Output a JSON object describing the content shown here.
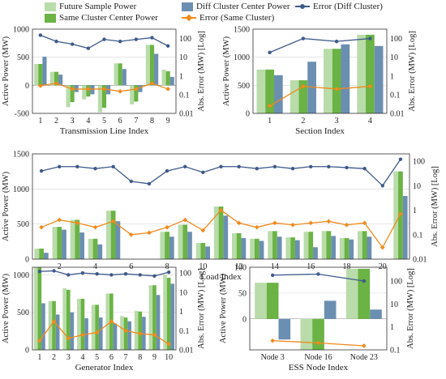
{
  "legend": {
    "future": "Future Sample Power",
    "same": "Same Cluster Center Power",
    "diff": "Diff Cluster Center Power",
    "err_diff": "Error (Diff Cluster)",
    "err_same": "Error (Same Cluster)"
  },
  "colors": {
    "future": "#b9dcaa",
    "same": "#6ab344",
    "diff": "#6b8fb0",
    "err_diff": "#3e5a8a",
    "err_same": "#f08a1c"
  },
  "chart_data": [
    {
      "type": "bar",
      "xlabel": "Transmission Line Index",
      "ylabel": "Active Power (MW)",
      "ylabel_right": "Abs. Error (MW) [Log]",
      "ylim": [
        -500,
        1000
      ],
      "yticks": [
        -500,
        0,
        500,
        1000
      ],
      "y2ticks": [
        "0.01",
        "0.1",
        "1",
        "10",
        "100"
      ],
      "categories": [
        "1",
        "2",
        "3",
        "4",
        "5",
        "6",
        "7",
        "8",
        "9"
      ],
      "series": [
        {
          "key": "future",
          "values": [
            380,
            240,
            -390,
            -250,
            -480,
            390,
            -340,
            720,
            280
          ]
        },
        {
          "key": "same",
          "values": [
            380,
            240,
            -300,
            -200,
            -400,
            390,
            -290,
            720,
            250
          ]
        },
        {
          "key": "diff",
          "values": [
            510,
            190,
            -120,
            -160,
            -160,
            290,
            -120,
            560,
            150
          ]
        }
      ],
      "lines": [
        {
          "key": "err_diff",
          "values": [
            150,
            70,
            50,
            30,
            90,
            70,
            90,
            110,
            40
          ]
        },
        {
          "key": "err_same",
          "values": [
            0.3,
            0.4,
            0.2,
            0.2,
            0.2,
            0.15,
            0.2,
            0.4,
            0.2
          ]
        }
      ]
    },
    {
      "type": "bar",
      "xlabel": "Section Index",
      "ylabel": "Active Power (MW)",
      "ylabel_right": "Abs. Error (MW) [Log]",
      "ylim": [
        0,
        1500
      ],
      "yticks": [
        0,
        500,
        1000,
        1500
      ],
      "y2ticks": [
        "0.01",
        "0.1",
        "1",
        "10",
        "100"
      ],
      "categories": [
        "1",
        "2",
        "3",
        "4"
      ],
      "series": [
        {
          "key": "future",
          "values": [
            780,
            590,
            1150,
            1400
          ]
        },
        {
          "key": "same",
          "values": [
            780,
            590,
            1150,
            1400
          ]
        },
        {
          "key": "diff",
          "values": [
            680,
            920,
            1230,
            1200
          ]
        }
      ],
      "lines": [
        {
          "key": "err_diff",
          "values": [
            18,
            100,
            70,
            100
          ]
        },
        {
          "key": "err_same",
          "values": [
            0.025,
            0.28,
            0.2,
            0.28
          ]
        }
      ]
    },
    {
      "type": "bar",
      "xlabel": "Load Index",
      "ylabel": "Active Power (MW)",
      "ylabel_right": "Abs. Error (MW) [Log]",
      "ylim": [
        0,
        1500
      ],
      "yticks": [
        0,
        500,
        1000,
        1500
      ],
      "y2ticks": [
        "0.01",
        "0.1",
        "1",
        "10",
        "100"
      ],
      "categories": [
        "1",
        "2",
        "3",
        "4",
        "5",
        "6",
        "7",
        "8",
        "9",
        "10",
        "11",
        "12",
        "13",
        "14",
        "15",
        "16",
        "17",
        "18",
        "19",
        "20",
        "21"
      ],
      "xticks": [
        "2",
        "4",
        "6",
        "8",
        "10",
        "12",
        "14",
        "16",
        "18",
        "20"
      ],
      "series": [
        {
          "key": "future",
          "values": [
            150,
            460,
            560,
            290,
            690,
            0,
            0,
            390,
            490,
            230,
            750,
            370,
            290,
            400,
            310,
            390,
            400,
            300,
            400,
            0,
            1250
          ]
        },
        {
          "key": "same",
          "values": [
            150,
            460,
            560,
            290,
            690,
            0,
            0,
            390,
            490,
            230,
            750,
            370,
            290,
            400,
            310,
            390,
            400,
            300,
            400,
            0,
            1250
          ]
        },
        {
          "key": "diff",
          "values": [
            90,
            420,
            380,
            210,
            540,
            0,
            0,
            320,
            390,
            180,
            620,
            300,
            260,
            320,
            270,
            170,
            330,
            280,
            320,
            0,
            900
          ]
        }
      ],
      "lines": [
        {
          "key": "err_diff",
          "values": [
            40,
            60,
            60,
            50,
            60,
            15,
            12,
            40,
            60,
            35,
            60,
            60,
            50,
            60,
            50,
            60,
            60,
            55,
            50,
            10,
            120
          ]
        },
        {
          "key": "err_same",
          "values": [
            0.2,
            0.4,
            0.3,
            0.2,
            0.35,
            0.1,
            0.12,
            0.2,
            0.4,
            0.15,
            1.0,
            0.3,
            0.2,
            0.3,
            0.25,
            0.3,
            0.35,
            0.25,
            0.3,
            0.03,
            0.7
          ]
        }
      ]
    },
    {
      "type": "bar",
      "xlabel": "Generator Index",
      "ylabel": "Active Power (MW)",
      "ylabel_right": "Abs. Error (MW) [Log]",
      "ylim": [
        0,
        1100
      ],
      "yticks": [
        0,
        500,
        1000
      ],
      "y2ticks": [
        "0.01",
        "0.1",
        "1",
        "10",
        "100"
      ],
      "categories": [
        "1",
        "2",
        "3",
        "4",
        "5",
        "6",
        "7",
        "8",
        "9",
        "10"
      ],
      "series": [
        {
          "key": "future",
          "values": [
            1150,
            650,
            820,
            680,
            600,
            750,
            450,
            520,
            860,
            1000
          ]
        },
        {
          "key": "same",
          "values": [
            1150,
            650,
            800,
            680,
            600,
            750,
            430,
            510,
            860,
            960
          ]
        },
        {
          "key": "diff",
          "values": [
            620,
            470,
            500,
            420,
            430,
            350,
            380,
            440,
            730,
            880
          ]
        }
      ],
      "lines": [
        {
          "key": "err_diff",
          "values": [
            120,
            130,
            80,
            100,
            90,
            80,
            90,
            80,
            70,
            110
          ]
        },
        {
          "key": "err_same",
          "values": [
            0.03,
            0.3,
            0.04,
            0.06,
            0.08,
            0.3,
            0.1,
            0.07,
            0.06,
            0.02
          ]
        }
      ]
    },
    {
      "type": "bar",
      "xlabel": "ESS Node Index",
      "ylabel": "Active Power (MW)",
      "ylabel_right": "Abs. Error (MW) [Log]",
      "ylim": [
        -60,
        100
      ],
      "yticks": [
        0,
        50,
        100
      ],
      "y2ticks": [
        "0.1",
        "1",
        "10",
        "100"
      ],
      "categories": [
        "Node 3",
        "Node 16",
        "Node 23"
      ],
      "series": [
        {
          "key": "future",
          "values": [
            70,
            -60,
            97
          ]
        },
        {
          "key": "same",
          "values": [
            70,
            -60,
            97
          ]
        },
        {
          "key": "diff",
          "values": [
            -40,
            35,
            18
          ]
        }
      ],
      "lines": [
        {
          "key": "err_diff",
          "values": [
            180,
            200,
            100
          ]
        },
        {
          "key": "err_same",
          "values": [
            0.25,
            0.2,
            0.15
          ]
        }
      ]
    }
  ]
}
